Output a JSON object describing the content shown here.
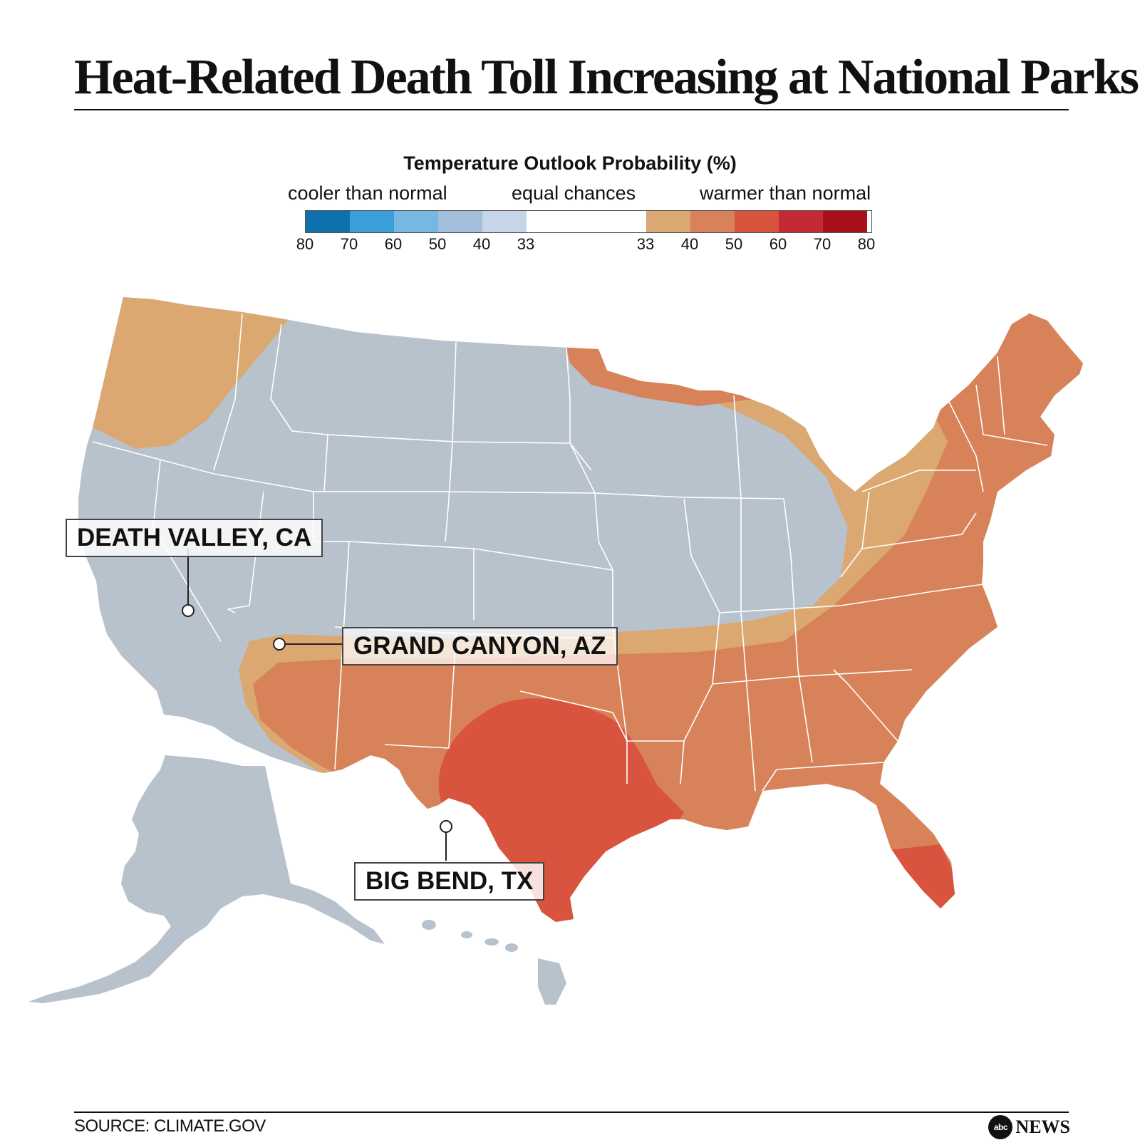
{
  "title": "Heat-Related Death Toll Increasing at National Parks",
  "legend": {
    "title": "Temperature Outlook Probability (%)",
    "cooler_label": "cooler than normal",
    "equal_label": "equal chances",
    "warmer_label": "warmer than normal",
    "cool_ticks": [
      "80",
      "70",
      "60",
      "50",
      "40",
      "33"
    ],
    "warm_ticks": [
      "33",
      "40",
      "50",
      "60",
      "70",
      "80"
    ],
    "colors": {
      "cool": [
        "#0f70ae",
        "#3a9fd9",
        "#77b8e3",
        "#a2bedb",
        "#c6d5e8"
      ],
      "equal": "#ffffff",
      "warm": [
        "#daa870",
        "#d8825a",
        "#d8543f",
        "#c52933",
        "#a8111c"
      ]
    }
  },
  "map": {
    "equal_chances_fill": "#b8c2cc",
    "band_33_40_fill": "#daa870",
    "band_40_50_fill": "#d8825a",
    "band_50_60_fill": "#d8543f",
    "state_line_color": "#ffffff"
  },
  "callouts": {
    "death_valley": "DEATH VALLEY, CA",
    "grand_canyon": "GRAND CANYON, AZ",
    "big_bend": "BIG BEND, TX"
  },
  "footer": {
    "source": "SOURCE: CLIMATE.GOV",
    "logo_text": "abc",
    "brand_text": "NEWS"
  }
}
